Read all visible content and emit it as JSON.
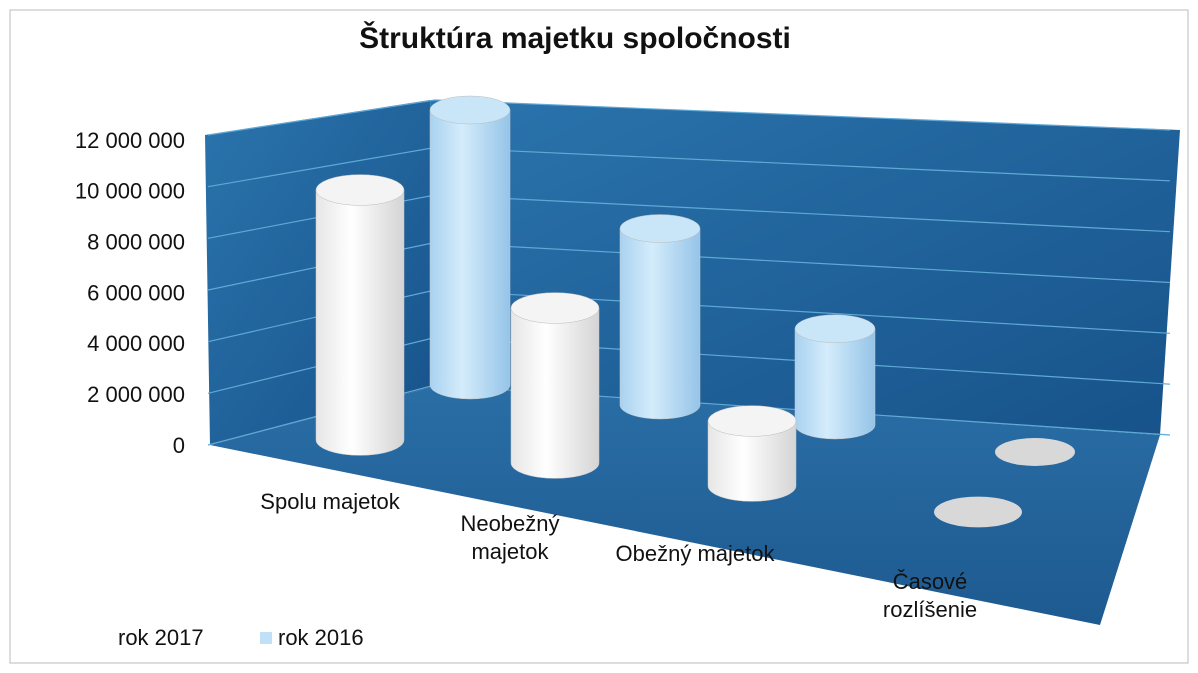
{
  "chart_data": {
    "type": "bar3d",
    "title": "Štruktúra majetku spoločnosti",
    "categories": [
      "Spolu majetok",
      "Neobežný majetok",
      "Obežný majetok",
      "Časové rozlíšenie"
    ],
    "series": [
      {
        "name": "rok 2017",
        "color": "#ffffff",
        "values": [
          10000000,
          6200000,
          2600000,
          0
        ]
      },
      {
        "name": "rok 2016",
        "color": "#bfe0f7",
        "values": [
          12000000,
          7700000,
          4200000,
          0
        ]
      }
    ],
    "ylim": [
      0,
      12000000
    ],
    "yticks": [
      0,
      {
        "value": 2000000,
        "label": "2 000 000"
      },
      {
        "value": 4000000,
        "label": "4 000 000"
      },
      {
        "value": 6000000,
        "label": "6 000 000"
      },
      {
        "value": 8000000,
        "label": "8 000 000"
      },
      {
        "value": 10000000,
        "label": "10 000 000"
      },
      {
        "value": 12000000,
        "label": "12 000 000"
      }
    ],
    "grid": true,
    "legend": "bottom-left"
  }
}
